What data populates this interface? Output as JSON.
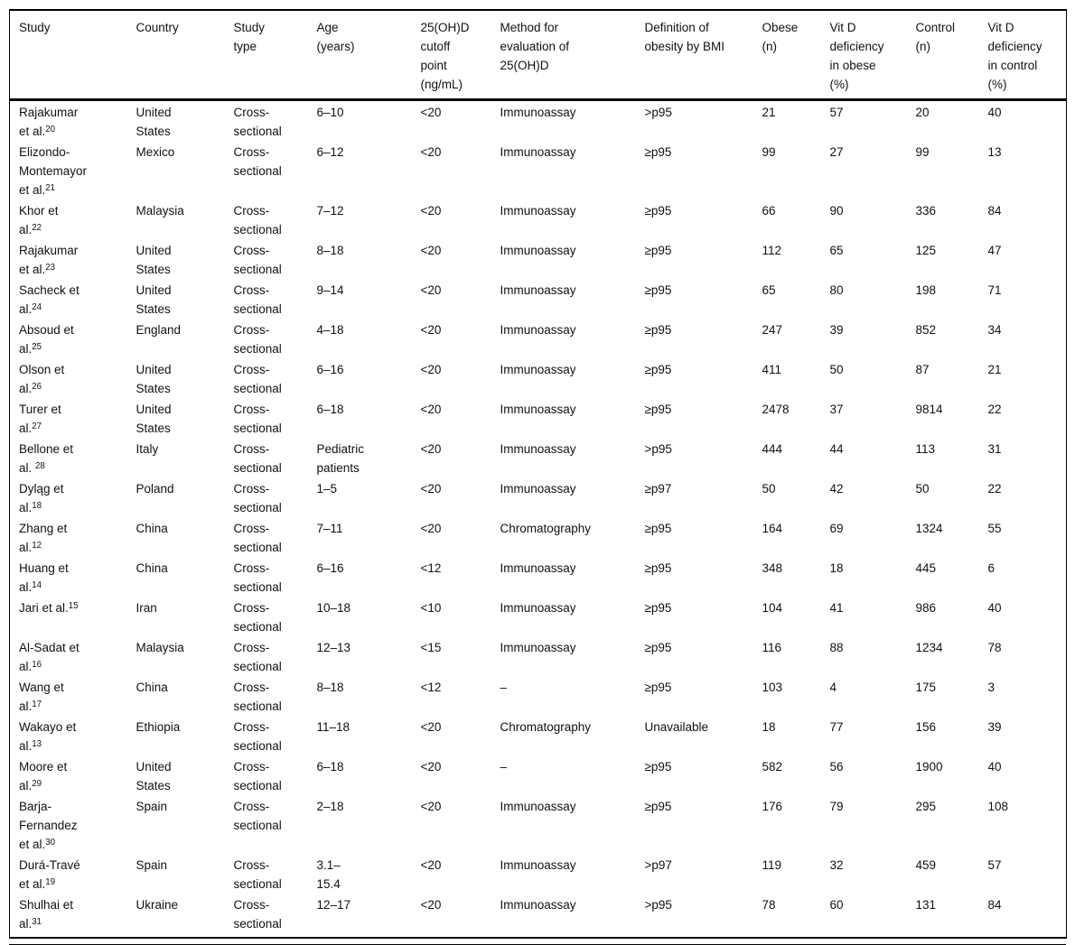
{
  "colors": {
    "background": "#ffffff",
    "text": "#111111",
    "rule": "#000000"
  },
  "table": {
    "columns": [
      {
        "key": "study",
        "label": "Study"
      },
      {
        "key": "country",
        "label": "Country"
      },
      {
        "key": "study_type",
        "label": "Study type"
      },
      {
        "key": "age",
        "label": "Age (years)"
      },
      {
        "key": "cutoff",
        "label": "25(OH)D cutoff point (ng/mL)"
      },
      {
        "key": "method",
        "label": "Method for evaluation of 25(OH)D"
      },
      {
        "key": "definition",
        "label": "Definition of obesity by BMI"
      },
      {
        "key": "obese_n",
        "label": "Obese (n)"
      },
      {
        "key": "vitd_obese_pct",
        "label": "Vit D deficiency in obese (%)"
      },
      {
        "key": "control_n",
        "label": "Control (n)"
      },
      {
        "key": "vitd_control_pct",
        "label": "Vit D deficiency in control (%)"
      }
    ],
    "rows": [
      {
        "study": "Rajakumar et al.",
        "ref": "20",
        "country": "United States",
        "study_type": "Cross-sectional",
        "age": "6–10",
        "cutoff": "<20",
        "method": "Immunoassay",
        "definition": ">p95",
        "obese_n": "21",
        "vitd_obese_pct": "57",
        "control_n": "20",
        "vitd_control_pct": "40"
      },
      {
        "study": "Elizondo-Montemayor et al.",
        "ref": "21",
        "country": "Mexico",
        "study_type": "Cross-sectional",
        "age": "6–12",
        "cutoff": "<20",
        "method": "Immunoassay",
        "definition": "≥p95",
        "obese_n": "99",
        "vitd_obese_pct": "27",
        "control_n": "99",
        "vitd_control_pct": "13"
      },
      {
        "study": "Khor et al.",
        "ref": "22",
        "country": "Malaysia",
        "study_type": "Cross-sectional",
        "age": "7–12",
        "cutoff": "<20",
        "method": "Immunoassay",
        "definition": "≥p95",
        "obese_n": "66",
        "vitd_obese_pct": "90",
        "control_n": "336",
        "vitd_control_pct": "84"
      },
      {
        "study": "Rajakumar et al.",
        "ref": "23",
        "country": "United States",
        "study_type": "Cross-sectional",
        "age": "8–18",
        "cutoff": "<20",
        "method": "Immunoassay",
        "definition": "≥p95",
        "obese_n": "112",
        "vitd_obese_pct": "65",
        "control_n": "125",
        "vitd_control_pct": "47"
      },
      {
        "study": "Sacheck et al.",
        "ref": "24",
        "country": "United States",
        "study_type": "Cross-sectional",
        "age": "9–14",
        "cutoff": "<20",
        "method": "Immunoassay",
        "definition": "≥p95",
        "obese_n": "65",
        "vitd_obese_pct": "80",
        "control_n": "198",
        "vitd_control_pct": "71"
      },
      {
        "study": "Absoud et al.",
        "ref": "25",
        "country": "England",
        "study_type": "Cross-sectional",
        "age": "4–18",
        "cutoff": "<20",
        "method": "Immunoassay",
        "definition": "≥p95",
        "obese_n": "247",
        "vitd_obese_pct": "39",
        "control_n": "852",
        "vitd_control_pct": "34"
      },
      {
        "study": "Olson et al.",
        "ref": "26",
        "country": "United States",
        "study_type": "Cross-sectional",
        "age": "6–16",
        "cutoff": "<20",
        "method": "Immunoassay",
        "definition": "≥p95",
        "obese_n": "411",
        "vitd_obese_pct": "50",
        "control_n": "87",
        "vitd_control_pct": "21"
      },
      {
        "study": "Turer et al.",
        "ref": "27",
        "country": "United States",
        "study_type": "Cross-sectional",
        "age": "6–18",
        "cutoff": "<20",
        "method": "Immunoassay",
        "definition": "≥p95",
        "obese_n": "2478",
        "vitd_obese_pct": "37",
        "control_n": "9814",
        "vitd_control_pct": "22"
      },
      {
        "study": "Bellone et al. ",
        "ref": "28",
        "country": "Italy",
        "study_type": "Cross-sectional",
        "age": "Pediatric patients",
        "cutoff": "<20",
        "method": "Immunoassay",
        "definition": ">p95",
        "obese_n": "444",
        "vitd_obese_pct": "44",
        "control_n": "113",
        "vitd_control_pct": "31"
      },
      {
        "study": "Dyląg et al.",
        "ref": "18",
        "country": "Poland",
        "study_type": "Cross-sectional",
        "age": "1–5",
        "cutoff": "<20",
        "method": "Immunoassay",
        "definition": "≥p97",
        "obese_n": "50",
        "vitd_obese_pct": "42",
        "control_n": "50",
        "vitd_control_pct": "22"
      },
      {
        "study": "Zhang et al.",
        "ref": "12",
        "country": "China",
        "study_type": "Cross-sectional",
        "age": "7–11",
        "cutoff": "<20",
        "method": "Chromatography",
        "definition": "≥p95",
        "obese_n": "164",
        "vitd_obese_pct": "69",
        "control_n": "1324",
        "vitd_control_pct": "55"
      },
      {
        "study": "Huang et al.",
        "ref": "14",
        "country": "China",
        "study_type": "Cross-sectional",
        "age": "6–16",
        "cutoff": "<12",
        "method": "Immunoassay",
        "definition": "≥p95",
        "obese_n": "348",
        "vitd_obese_pct": "18",
        "control_n": "445",
        "vitd_control_pct": "6"
      },
      {
        "study": "Jari et al.",
        "ref": "15",
        "country": "Iran",
        "study_type": "Cross-sectional",
        "age": "10–18",
        "cutoff": "<10",
        "method": "Immunoassay",
        "definition": "≥p95",
        "obese_n": "104",
        "vitd_obese_pct": "41",
        "control_n": "986",
        "vitd_control_pct": "40"
      },
      {
        "study": "Al-Sadat et al.",
        "ref": "16",
        "country": "Malaysia",
        "study_type": "Cross-sectional",
        "age": "12–13",
        "cutoff": "<15",
        "method": "Immunoassay",
        "definition": "≥p95",
        "obese_n": "116",
        "vitd_obese_pct": "88",
        "control_n": "1234",
        "vitd_control_pct": "78"
      },
      {
        "study": "Wang et al.",
        "ref": "17",
        "country": "China",
        "study_type": "Cross-sectional",
        "age": "8–18",
        "cutoff": "<12",
        "method": "–",
        "definition": "≥p95",
        "obese_n": "103",
        "vitd_obese_pct": "4",
        "control_n": "175",
        "vitd_control_pct": "3"
      },
      {
        "study": "Wakayo et al.",
        "ref": "13",
        "country": "Ethiopia",
        "study_type": "Cross-sectional",
        "age": "11–18",
        "cutoff": "<20",
        "method": "Chromatography",
        "definition": "Unavailable",
        "obese_n": "18",
        "vitd_obese_pct": "77",
        "control_n": "156",
        "vitd_control_pct": "39"
      },
      {
        "study": "Moore et al.",
        "ref": "29",
        "country": "United States",
        "study_type": "Cross-sectional",
        "age": "6–18",
        "cutoff": "<20",
        "method": "–",
        "definition": "≥p95",
        "obese_n": "582",
        "vitd_obese_pct": "56",
        "control_n": "1900",
        "vitd_control_pct": "40"
      },
      {
        "study": "Barja-Fernandez et al.",
        "ref": "30",
        "country": "Spain",
        "study_type": "Cross-sectional",
        "age": "2–18",
        "cutoff": "<20",
        "method": "Immunoassay",
        "definition": "≥p95",
        "obese_n": "176",
        "vitd_obese_pct": "79",
        "control_n": "295",
        "vitd_control_pct": "108"
      },
      {
        "study": "Durá-Travé et al.",
        "ref": "19",
        "country": "Spain",
        "study_type": "Cross-sectional",
        "age": "3.1–15.4",
        "cutoff": "<20",
        "method": "Immunoassay",
        "definition": ">p97",
        "obese_n": "119",
        "vitd_obese_pct": "32",
        "control_n": "459",
        "vitd_control_pct": "57"
      },
      {
        "study": "Shulhai et al.",
        "ref": "31",
        "country": "Ukraine",
        "study_type": "Cross-sectional",
        "age": "12–17",
        "cutoff": "<20",
        "method": "Immunoassay",
        "definition": ">p95",
        "obese_n": "78",
        "vitd_obese_pct": "60",
        "control_n": "131",
        "vitd_control_pct": "84"
      }
    ]
  }
}
